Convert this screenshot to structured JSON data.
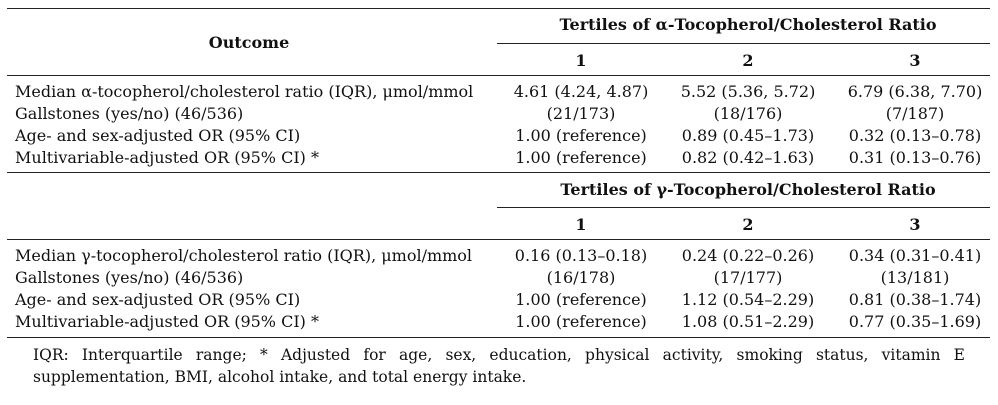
{
  "table": {
    "outcome_header": "Outcome",
    "blocks": [
      {
        "title": "Tertiles of α-Tocopherol/Cholesterol Ratio",
        "tertiles": [
          "1",
          "2",
          "3"
        ],
        "rows": [
          {
            "label": "Median α-tocopherol/cholesterol ratio (IQR), μmol/mmol",
            "values": [
              "4.61 (4.24, 4.87)",
              "5.52 (5.36, 5.72)",
              "6.79 (6.38, 7.70)"
            ]
          },
          {
            "label": "Gallstones (yes/no) (46/536)",
            "values": [
              "(21/173)",
              "(18/176)",
              "(7/187)"
            ]
          },
          {
            "label": "Age- and sex-adjusted OR (95% CI)",
            "values": [
              "1.00 (reference)",
              "0.89 (0.45–1.73)",
              "0.32 (0.13–0.78)"
            ]
          },
          {
            "label": "Multivariable-adjusted OR (95% CI) *",
            "values": [
              "1.00 (reference)",
              "0.82 (0.42–1.63)",
              "0.31 (0.13–0.76)"
            ]
          }
        ]
      },
      {
        "title": "Tertiles of γ-Tocopherol/Cholesterol Ratio",
        "tertiles": [
          "1",
          "2",
          "3"
        ],
        "rows": [
          {
            "label": "Median γ-tocopherol/cholesterol ratio (IQR), μmol/mmol",
            "values": [
              "0.16 (0.13–0.18)",
              "0.24 (0.22–0.26)",
              "0.34 (0.31–0.41)"
            ]
          },
          {
            "label": "Gallstones (yes/no) (46/536)",
            "values": [
              "(16/178)",
              "(17/177)",
              "(13/181)"
            ]
          },
          {
            "label": "Age- and sex-adjusted OR (95% CI)",
            "values": [
              "1.00 (reference)",
              "1.12 (0.54–2.29)",
              "0.81 (0.38–1.74)"
            ]
          },
          {
            "label": "Multivariable-adjusted OR (95% CI) *",
            "values": [
              "1.00 (reference)",
              "1.08 (0.51–2.29)",
              "0.77 (0.35–1.69)"
            ]
          }
        ]
      }
    ]
  },
  "footnote": {
    "line1": "IQR: Interquartile range; * Adjusted for age, sex, education, physical activity, smoking status, vitamin E",
    "line2": "supplementation, BMI, alcohol intake, and total energy intake."
  }
}
